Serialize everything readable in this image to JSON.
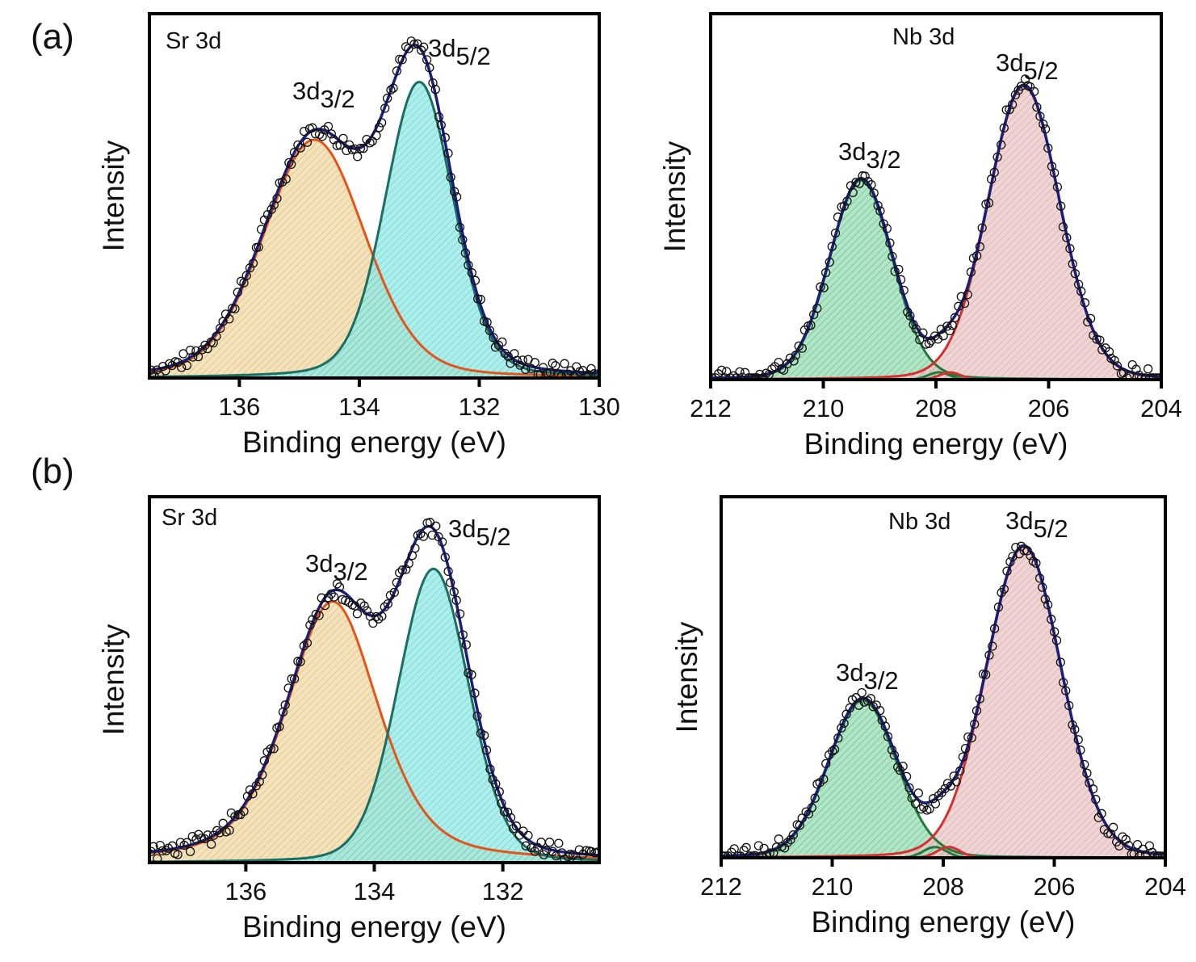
{
  "figure": {
    "panel_labels": [
      "(a)",
      "(b)"
    ]
  },
  "colors": {
    "envelope": "#1c1f7a",
    "sr_3d32_line": "#e0561b",
    "sr_3d32_fill": "#f3dfb4",
    "sr_3d52_line": "#1b6e62",
    "sr_3d52_fill": "#8fe9e6",
    "nb_3d32_line": "#237a3c",
    "nb_3d32_fill": "#a7e3c0",
    "nb_3d52_line": "#d43030",
    "nb_3d52_fill": "#ebc6c4",
    "points": "#111111"
  },
  "chart_data": [
    {
      "type": "line",
      "panel": "(a)",
      "title": "Sr 3d",
      "xlabel": "Binding energy (eV)",
      "ylabel": "Intensity",
      "xlim": [
        137.5,
        130
      ],
      "x_reversed": true,
      "xticks": [
        "136",
        "134",
        "132",
        "130"
      ],
      "ylim": [
        0,
        1
      ],
      "y_ticks_shown": false,
      "grid": false,
      "series": [
        {
          "name": "3d3/2",
          "label_main": "3d",
          "label_sub": "3/2",
          "center": 134.75,
          "height": 0.66,
          "fwhm": 2.0,
          "lorentz_fraction": 0.2,
          "color_key": "sr_3d32"
        },
        {
          "name": "3d5/2",
          "label_main": "3d",
          "label_sub": "5/2",
          "center": 133.0,
          "height": 0.82,
          "fwhm": 1.35,
          "lorentz_fraction": 0.2,
          "color_key": "sr_3d52"
        }
      ],
      "minor_components": []
    },
    {
      "type": "line",
      "panel": "(a)",
      "title": "Nb 3d",
      "xlabel": "Binding energy (eV)",
      "ylabel": "Intensity",
      "xlim": [
        212,
        204
      ],
      "x_reversed": true,
      "xticks": [
        "212",
        "210",
        "208",
        "206",
        "204"
      ],
      "ylim": [
        0,
        1
      ],
      "y_ticks_shown": false,
      "grid": false,
      "series": [
        {
          "name": "3d3/2",
          "label_main": "3d",
          "label_sub": "3/2",
          "center": 209.33,
          "height": 0.55,
          "fwhm": 1.32,
          "lorentz_fraction": 0.1,
          "color_key": "nb_3d32"
        },
        {
          "name": "3d5/2",
          "label_main": "3d",
          "label_sub": "5/2",
          "center": 206.44,
          "height": 0.81,
          "fwhm": 1.5,
          "lorentz_fraction": 0.1,
          "color_key": "nb_3d52"
        }
      ],
      "minor_components": [
        {
          "center": 207.95,
          "height": 0.02,
          "fwhm": 0.45,
          "color_key": "nb_3d32"
        },
        {
          "center": 207.75,
          "height": 0.02,
          "fwhm": 0.45,
          "color_key": "nb_3d52"
        }
      ]
    },
    {
      "type": "line",
      "panel": "(b)",
      "title": "Sr 3d",
      "xlabel": "Binding energy (eV)",
      "ylabel": "Intensity",
      "xlim": [
        137.5,
        130.5
      ],
      "x_reversed": true,
      "xticks": [
        "136",
        "134",
        "132"
      ],
      "ylim": [
        0,
        1
      ],
      "y_ticks_shown": false,
      "grid": false,
      "series": [
        {
          "name": "3d3/2",
          "label_main": "3d",
          "label_sub": "3/2",
          "center": 134.65,
          "height": 0.72,
          "fwhm": 1.7,
          "lorentz_fraction": 0.45,
          "color_key": "sr_3d32"
        },
        {
          "name": "3d5/2",
          "label_main": "3d",
          "label_sub": "5/2",
          "center": 133.08,
          "height": 0.81,
          "fwhm": 1.3,
          "lorentz_fraction": 0.15,
          "color_key": "sr_3d52"
        }
      ],
      "minor_components": []
    },
    {
      "type": "line",
      "panel": "(b)",
      "title": "Nb 3d",
      "xlabel": "Binding energy (eV)",
      "ylabel": "Intensity",
      "xlim": [
        212,
        204
      ],
      "x_reversed": true,
      "xticks": [
        "212",
        "210",
        "208",
        "206",
        "204"
      ],
      "ylim": [
        0,
        1
      ],
      "y_ticks_shown": false,
      "grid": false,
      "series": [
        {
          "name": "3d3/2",
          "label_main": "3d",
          "label_sub": "3/2",
          "center": 209.45,
          "height": 0.44,
          "fwhm": 1.45,
          "lorentz_fraction": 0.1,
          "color_key": "nb_3d32"
        },
        {
          "name": "3d5/2",
          "label_main": "3d",
          "label_sub": "5/2",
          "center": 206.55,
          "height": 0.87,
          "fwhm": 1.6,
          "lorentz_fraction": 0.1,
          "color_key": "nb_3d52"
        }
      ],
      "minor_components": [
        {
          "center": 208.15,
          "height": 0.03,
          "fwhm": 0.5,
          "color_key": "nb_3d32"
        },
        {
          "center": 207.9,
          "height": 0.03,
          "fwhm": 0.5,
          "color_key": "nb_3d52"
        }
      ]
    }
  ]
}
